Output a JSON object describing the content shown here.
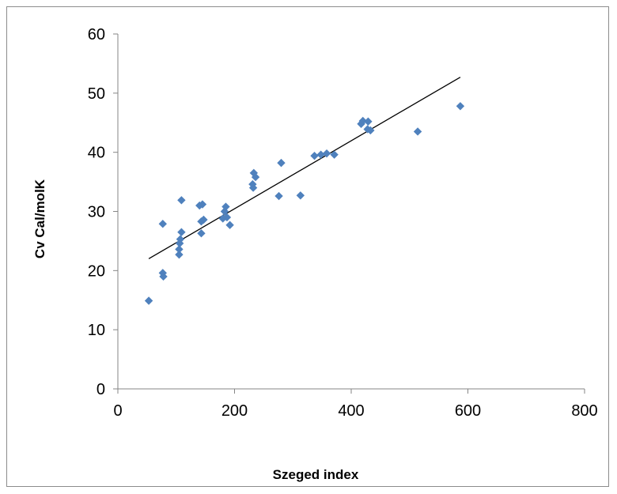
{
  "chart_data": {
    "type": "scatter",
    "title": "",
    "xlabel": "Szeged index",
    "ylabel": "Cv Cal/molK",
    "xlim": [
      0,
      800
    ],
    "ylim": [
      0,
      60
    ],
    "x_ticks": [
      "0",
      "200",
      "400",
      "600",
      "800"
    ],
    "y_ticks": [
      "0",
      "10",
      "20",
      "30",
      "40",
      "50",
      "60"
    ],
    "grid": false,
    "legend": "none",
    "marker_color": "#4f81bd",
    "trendline_color": "#000000",
    "points": [
      {
        "x": 53,
        "y": 14.9
      },
      {
        "x": 77,
        "y": 27.9
      },
      {
        "x": 77,
        "y": 19.6
      },
      {
        "x": 78,
        "y": 19.0
      },
      {
        "x": 105,
        "y": 22.7
      },
      {
        "x": 105,
        "y": 23.6
      },
      {
        "x": 106,
        "y": 24.6
      },
      {
        "x": 107,
        "y": 25.3
      },
      {
        "x": 109,
        "y": 26.5
      },
      {
        "x": 109,
        "y": 31.9
      },
      {
        "x": 140,
        "y": 31.0
      },
      {
        "x": 143,
        "y": 26.3
      },
      {
        "x": 143,
        "y": 28.3
      },
      {
        "x": 145,
        "y": 31.2
      },
      {
        "x": 147,
        "y": 28.6
      },
      {
        "x": 180,
        "y": 28.8
      },
      {
        "x": 183,
        "y": 30.0
      },
      {
        "x": 185,
        "y": 30.8
      },
      {
        "x": 187,
        "y": 29.0
      },
      {
        "x": 192,
        "y": 27.7
      },
      {
        "x": 231,
        "y": 34.6
      },
      {
        "x": 232,
        "y": 34.0
      },
      {
        "x": 233,
        "y": 36.5
      },
      {
        "x": 236,
        "y": 35.8
      },
      {
        "x": 276,
        "y": 32.6
      },
      {
        "x": 280,
        "y": 38.2
      },
      {
        "x": 313,
        "y": 32.7
      },
      {
        "x": 337,
        "y": 39.4
      },
      {
        "x": 348,
        "y": 39.6
      },
      {
        "x": 358,
        "y": 39.8
      },
      {
        "x": 371,
        "y": 39.6
      },
      {
        "x": 417,
        "y": 44.8
      },
      {
        "x": 420,
        "y": 45.3
      },
      {
        "x": 428,
        "y": 43.9
      },
      {
        "x": 429,
        "y": 45.2
      },
      {
        "x": 433,
        "y": 43.7
      },
      {
        "x": 514,
        "y": 43.5
      },
      {
        "x": 587,
        "y": 47.8
      }
    ],
    "trendline": {
      "x": [
        53,
        587
      ],
      "y": [
        22.0,
        52.7
      ]
    }
  }
}
